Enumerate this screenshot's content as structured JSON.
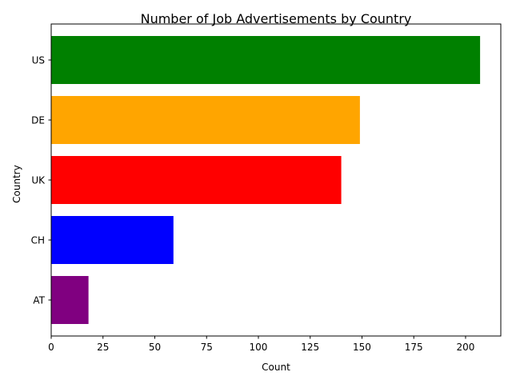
{
  "chart_data": {
    "type": "bar",
    "orientation": "horizontal",
    "title": "Number of Job Advertisements by Country",
    "xlabel": "Count",
    "ylabel": "Country",
    "categories": [
      "AT",
      "CH",
      "UK",
      "DE",
      "US"
    ],
    "values": [
      18,
      59,
      140,
      149,
      207
    ],
    "colors": [
      "#800080",
      "#0000ff",
      "#ff0000",
      "#ffa500",
      "#008000"
    ],
    "xlim": [
      0,
      217
    ],
    "xticks": [
      0,
      25,
      50,
      75,
      100,
      125,
      150,
      175,
      200
    ],
    "grid": false,
    "legend": false
  }
}
